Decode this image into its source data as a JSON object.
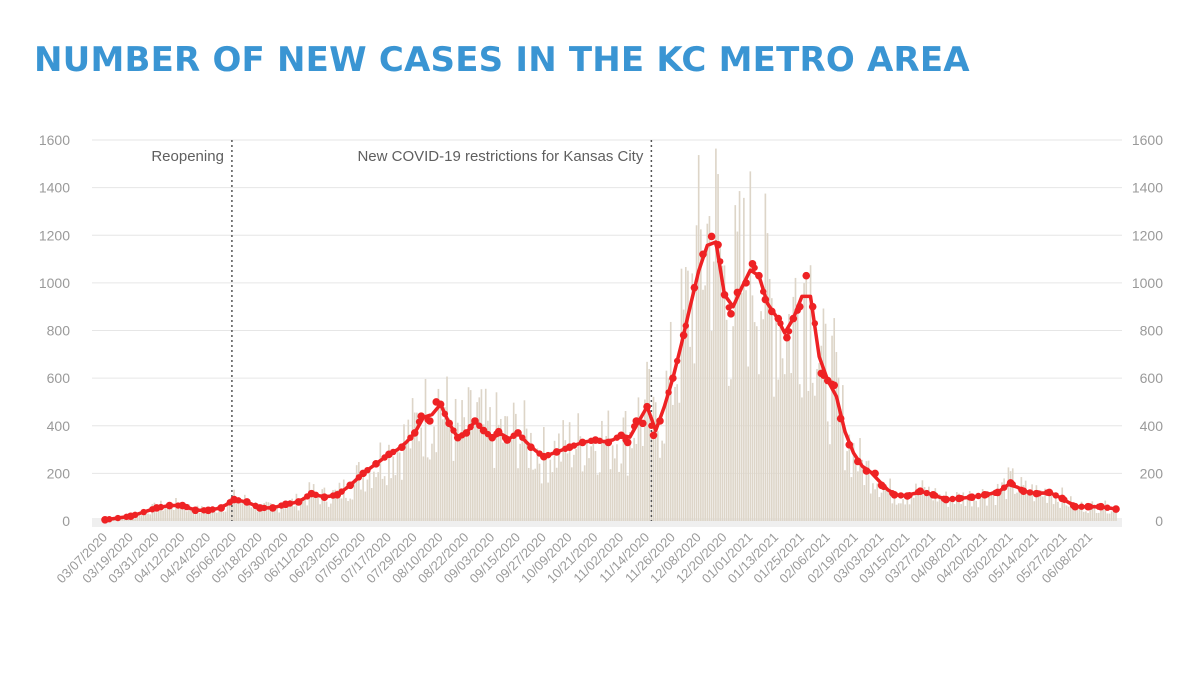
{
  "title": "NUMBER OF NEW CASES IN THE KC METRO AREA",
  "chart_data": {
    "type": "bar+line",
    "title": "NUMBER OF NEW CASES IN THE KC METRO AREA",
    "ylim": [
      0,
      1600
    ],
    "yticks": [
      0,
      200,
      400,
      600,
      800,
      1000,
      1200,
      1400,
      1600
    ],
    "grid": "horizontal",
    "legend": "none",
    "colors": {
      "bars": "#ddd5c8",
      "line": "#ee2224",
      "title": "#3a95d3",
      "grid": "#e6e6e6"
    },
    "x_tick_labels": [
      "03/07/2020",
      "03/19/2020",
      "03/31/2020",
      "04/12/2020",
      "04/24/2020",
      "05/06/2020",
      "05/18/2020",
      "05/30/2020",
      "06/11/2020",
      "06/23/2020",
      "07/05/2020",
      "07/17/2020",
      "07/29/2020",
      "08/10/2020",
      "08/22/2020",
      "09/03/2020",
      "09/15/2020",
      "09/27/2020",
      "10/09/2020",
      "10/21/2020",
      "11/02/2020",
      "11/14/2020",
      "11/26/2020",
      "12/08/2020",
      "12/20/2020",
      "01/01/2021",
      "01/13/2021",
      "01/25/2021",
      "02/06/2021",
      "02/19/2021",
      "03/03/2021",
      "03/15/2021",
      "03/27/2021",
      "04/08/2021",
      "04/20/2021",
      "05/02/2021",
      "05/14/2021",
      "05/27/2021",
      "06/08/2021"
    ],
    "annotations": [
      {
        "date": "05/05/2020",
        "label": "Reopening"
      },
      {
        "date": "11/16/2020",
        "label": "New COVID-19 restrictions for Kansas City"
      }
    ],
    "series": [
      {
        "type": "line",
        "markers": true,
        "points": [
          [
            "03/07/2020",
            5
          ],
          [
            "03/19/2020",
            20
          ],
          [
            "03/31/2020",
            55
          ],
          [
            "04/06/2020",
            65
          ],
          [
            "04/12/2020",
            65
          ],
          [
            "04/18/2020",
            45
          ],
          [
            "04/24/2020",
            45
          ],
          [
            "04/30/2020",
            55
          ],
          [
            "05/06/2020",
            90
          ],
          [
            "05/12/2020",
            80
          ],
          [
            "05/18/2020",
            55
          ],
          [
            "05/24/2020",
            55
          ],
          [
            "05/30/2020",
            70
          ],
          [
            "06/05/2020",
            80
          ],
          [
            "06/11/2020",
            115
          ],
          [
            "06/17/2020",
            100
          ],
          [
            "06/23/2020",
            110
          ],
          [
            "06/29/2020",
            150
          ],
          [
            "07/05/2020",
            200
          ],
          [
            "07/11/2020",
            240
          ],
          [
            "07/17/2020",
            280
          ],
          [
            "07/23/2020",
            310
          ],
          [
            "07/29/2020",
            370
          ],
          [
            "08/01/2020",
            440
          ],
          [
            "08/05/2020",
            420
          ],
          [
            "08/08/2020",
            500
          ],
          [
            "08/10/2020",
            490
          ],
          [
            "08/14/2020",
            410
          ],
          [
            "08/18/2020",
            350
          ],
          [
            "08/22/2020",
            370
          ],
          [
            "08/26/2020",
            420
          ],
          [
            "08/30/2020",
            380
          ],
          [
            "09/03/2020",
            350
          ],
          [
            "09/06/2020",
            375
          ],
          [
            "09/10/2020",
            340
          ],
          [
            "09/15/2020",
            370
          ],
          [
            "09/21/2020",
            310
          ],
          [
            "09/27/2020",
            270
          ],
          [
            "10/03/2020",
            290
          ],
          [
            "10/09/2020",
            310
          ],
          [
            "10/15/2020",
            330
          ],
          [
            "10/21/2020",
            340
          ],
          [
            "10/27/2020",
            330
          ],
          [
            "11/02/2020",
            360
          ],
          [
            "11/05/2020",
            330
          ],
          [
            "11/09/2020",
            420
          ],
          [
            "11/12/2020",
            410
          ],
          [
            "11/14/2020",
            480
          ],
          [
            "11/17/2020",
            360
          ],
          [
            "11/20/2020",
            420
          ],
          [
            "11/26/2020",
            600
          ],
          [
            "12/01/2020",
            780
          ],
          [
            "12/06/2020",
            980
          ],
          [
            "12/10/2020",
            1120
          ],
          [
            "12/14/2020",
            1195
          ],
          [
            "12/17/2020",
            1160
          ],
          [
            "12/20/2020",
            950
          ],
          [
            "12/23/2020",
            870
          ],
          [
            "12/26/2020",
            960
          ],
          [
            "12/30/2020",
            1000
          ],
          [
            "01/02/2021",
            1080
          ],
          [
            "01/05/2021",
            1030
          ],
          [
            "01/08/2021",
            930
          ],
          [
            "01/11/2021",
            880
          ],
          [
            "01/14/2021",
            850
          ],
          [
            "01/18/2021",
            770
          ],
          [
            "01/21/2021",
            850
          ],
          [
            "01/24/2021",
            900
          ],
          [
            "01/27/2021",
            1030
          ],
          [
            "01/30/2021",
            900
          ],
          [
            "02/03/2021",
            620
          ],
          [
            "02/06/2021",
            590
          ],
          [
            "02/09/2021",
            570
          ],
          [
            "02/12/2021",
            430
          ],
          [
            "02/16/2021",
            320
          ],
          [
            "02/20/2021",
            250
          ],
          [
            "02/24/2021",
            210
          ],
          [
            "02/28/2021",
            200
          ],
          [
            "03/03/2021",
            150
          ],
          [
            "03/09/2021",
            110
          ],
          [
            "03/15/2021",
            105
          ],
          [
            "03/21/2021",
            125
          ],
          [
            "03/27/2021",
            110
          ],
          [
            "04/02/2021",
            90
          ],
          [
            "04/08/2021",
            95
          ],
          [
            "04/14/2021",
            100
          ],
          [
            "04/20/2021",
            110
          ],
          [
            "04/26/2021",
            120
          ],
          [
            "05/02/2021",
            160
          ],
          [
            "05/08/2021",
            125
          ],
          [
            "05/14/2021",
            115
          ],
          [
            "05/20/2021",
            120
          ],
          [
            "05/26/2021",
            95
          ],
          [
            "06/01/2021",
            60
          ],
          [
            "06/07/2021",
            60
          ],
          [
            "06/13/2021",
            60
          ],
          [
            "06/20/2021",
            50
          ]
        ]
      }
    ]
  }
}
